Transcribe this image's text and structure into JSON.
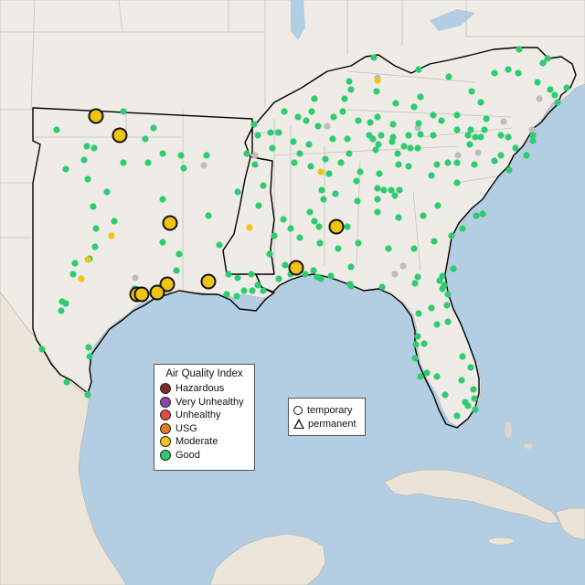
{
  "legend": {
    "title": "Air Quality Index",
    "categories": [
      {
        "label": "Hazardous",
        "color": "#7e2c25"
      },
      {
        "label": "Very Unhealthy",
        "color": "#8e44ad"
      },
      {
        "label": "Unhealthy",
        "color": "#e74c3c"
      },
      {
        "label": "USG",
        "color": "#e67e22"
      },
      {
        "label": "Moderate",
        "color": "#f1c40f"
      },
      {
        "label": "Good",
        "color": "#2ecc71"
      }
    ],
    "no_data_color": "#bdbdbd"
  },
  "type_legend": {
    "items": [
      {
        "label": "temporary",
        "shape": "circle"
      },
      {
        "label": "permanent",
        "shape": "triangle"
      }
    ]
  },
  "map": {
    "style": "terrain basemap, light land, blue water",
    "highlighted_region": "EPA Region 6 and Region 4 states outlined in black",
    "station_counts": {
      "Good": 280,
      "Moderate": 15,
      "No data": 14
    }
  }
}
